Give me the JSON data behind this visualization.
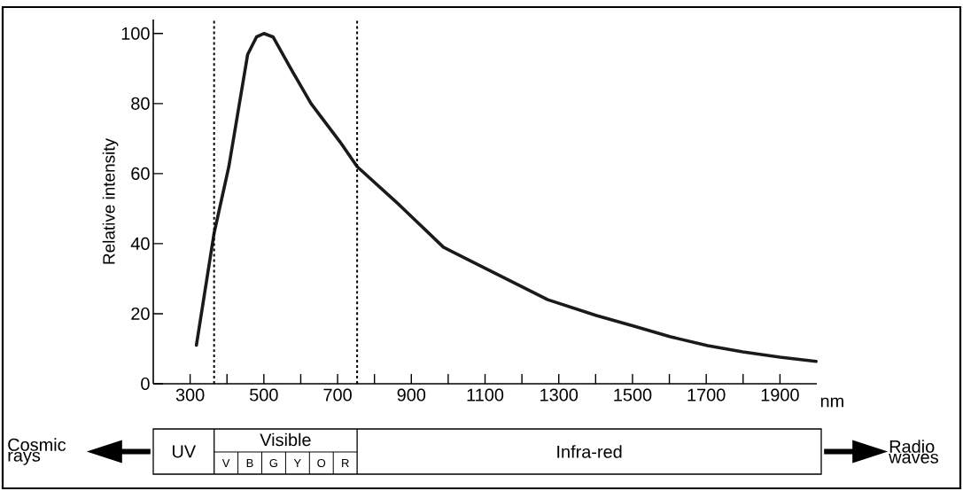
{
  "chart_data": {
    "type": "line",
    "ylabel": "Relative intensity",
    "xlabel": "nm",
    "x": [
      317,
      365,
      405,
      456,
      480,
      500,
      525,
      573,
      628,
      707,
      753,
      868,
      987,
      1100,
      1270,
      1402,
      1502,
      1603,
      1704,
      1799,
      1900,
      1998
    ],
    "values": [
      11,
      43,
      62,
      94,
      99,
      100,
      99,
      90,
      80,
      69,
      62,
      51,
      39,
      33,
      24,
      19.5,
      16.5,
      13.4,
      10.9,
      9.1,
      7.6,
      6.4
    ],
    "color": "#1a1a1a",
    "line_style": "solid",
    "xlim": [
      200,
      2000
    ],
    "ylim": [
      0,
      104
    ],
    "xticks": [
      300,
      {
        "value": 400,
        "label": null
      },
      500,
      {
        "value": 600,
        "label": null
      },
      700,
      {
        "value": 800,
        "label": null
      },
      900,
      {
        "value": 1000,
        "label": null
      },
      1100,
      {
        "value": 1200,
        "label": null
      },
      1300,
      {
        "value": 1400,
        "label": null
      },
      1500,
      {
        "value": 1600,
        "label": null
      },
      1700,
      {
        "value": 1800,
        "label": null
      },
      1900
    ],
    "yticks": [
      0,
      20,
      40,
      60,
      80,
      100
    ],
    "ref_lines": [
      {
        "axis": "x",
        "value": 365,
        "color": "#000000",
        "line_style": "dashed"
      },
      {
        "axis": "x",
        "value": 753,
        "color": "#000000",
        "line_style": "dashed"
      }
    ],
    "annotations": [
      "Cosmic rays",
      "UV",
      "Visible",
      "V",
      "B",
      "G",
      "Y",
      "O",
      "R",
      "Infra-red",
      "Radio waves"
    ]
  }
}
